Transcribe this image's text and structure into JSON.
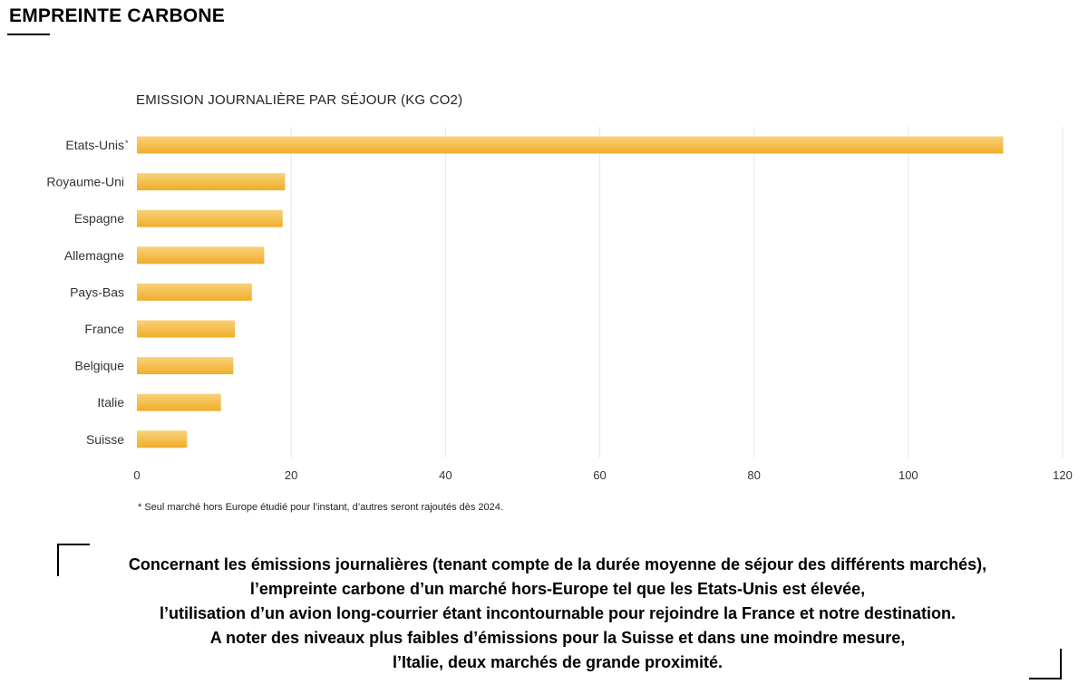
{
  "header": {
    "title": "EMPREINTE CARBONE"
  },
  "chart_data": {
    "type": "bar",
    "orientation": "horizontal",
    "title": "EMISSION JOURNALIÈRE PAR SÉJOUR (KG CO2)",
    "categories": [
      "Etats-Unis",
      "Royaume-Uni",
      "Espagne",
      "Allemagne",
      "Pays-Bas",
      "France",
      "Belgique",
      "Italie",
      "Suisse"
    ],
    "category_markers": [
      "*",
      "",
      "",
      "",
      "",
      "",
      "",
      "",
      ""
    ],
    "values": [
      112.3,
      19.2,
      18.9,
      16.5,
      14.9,
      12.7,
      12.5,
      10.9,
      6.5
    ],
    "xlim": [
      0,
      120
    ],
    "xticks": [
      0,
      20,
      40,
      60,
      80,
      100,
      120
    ],
    "grid": true,
    "legend": "none",
    "colors": {
      "bar_top": "#f8d27a",
      "bar_bottom": "#f0ad2a",
      "grid": "#e6e6e6"
    }
  },
  "footnote": "* Seul marché hors Europe étudié pour l’instant, d’autres seront rajoutés dès 2024.",
  "summary": {
    "lines": [
      "Concernant les émissions journalières (tenant compte de la durée moyenne de séjour des différents marchés),",
      "l’empreinte carbone d’un marché hors-Europe tel que les Etats-Unis est élevée,",
      "l’utilisation d’un avion long-courrier étant incontournable pour rejoindre la France et notre destination.",
      "A noter des niveaux plus faibles d’émissions pour la Suisse et dans une moindre mesure,",
      "l’Italie, deux marchés de grande proximité."
    ]
  }
}
